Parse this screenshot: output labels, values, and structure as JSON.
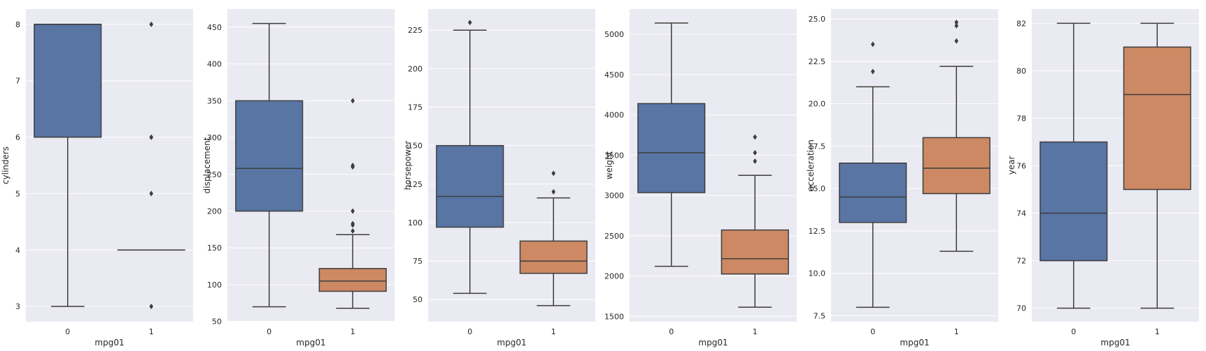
{
  "chart_data": [
    {
      "type": "boxplot",
      "xlabel": "mpg01",
      "ylabel": "cylinders",
      "categories": [
        "0",
        "1"
      ],
      "ylim": [
        2.73,
        8.27
      ],
      "yticks": [
        3,
        4,
        5,
        6,
        7,
        8
      ],
      "boxes": [
        {
          "category": "0",
          "whislo": 3,
          "q1": 6,
          "median": 8,
          "q3": 8,
          "whishi": 8,
          "fliers": []
        },
        {
          "category": "1",
          "whislo": 4,
          "q1": 4,
          "median": 4,
          "q3": 4,
          "whishi": 4,
          "fliers": [
            3,
            5,
            6,
            6,
            8
          ]
        }
      ]
    },
    {
      "type": "boxplot",
      "xlabel": "mpg01",
      "ylabel": "displacement",
      "categories": [
        "0",
        "1"
      ],
      "ylim": [
        49.7,
        474.6
      ],
      "yticks": [
        50,
        100,
        150,
        200,
        250,
        300,
        350,
        400,
        450
      ],
      "boxes": [
        {
          "category": "0",
          "whislo": 70,
          "q1": 200,
          "median": 258,
          "q3": 350,
          "whishi": 455,
          "fliers": []
        },
        {
          "category": "1",
          "whislo": 68,
          "q1": 91,
          "median": 105,
          "q3": 122,
          "whishi": 168,
          "fliers": [
            173,
            181,
            183,
            200,
            260,
            262,
            350
          ]
        }
      ]
    },
    {
      "type": "boxplot",
      "xlabel": "mpg01",
      "ylabel": "horsepower",
      "categories": [
        "0",
        "1"
      ],
      "ylim": [
        35.6,
        238.7
      ],
      "yticks": [
        50,
        75,
        100,
        125,
        150,
        175,
        200,
        225
      ],
      "boxes": [
        {
          "category": "0",
          "whislo": 54,
          "q1": 97,
          "median": 117,
          "q3": 150,
          "whishi": 225,
          "fliers": [
            230
          ]
        },
        {
          "category": "1",
          "whislo": 46,
          "q1": 67,
          "median": 75,
          "q3": 88,
          "whishi": 116,
          "fliers": [
            120,
            132
          ]
        }
      ]
    },
    {
      "type": "boxplot",
      "xlabel": "mpg01",
      "ylabel": "weight",
      "categories": [
        "0",
        "1"
      ],
      "ylim": [
        1433,
        5313
      ],
      "yticks": [
        1500,
        2000,
        2500,
        3000,
        3500,
        4000,
        4500,
        5000
      ],
      "boxes": [
        {
          "category": "0",
          "whislo": 2120,
          "q1": 3035,
          "median": 3530,
          "q3": 4140,
          "whishi": 5140,
          "fliers": []
        },
        {
          "category": "1",
          "whislo": 1613,
          "q1": 2025,
          "median": 2215,
          "q3": 2571,
          "whishi": 3250,
          "fliers": [
            3425,
            3530,
            3725
          ]
        }
      ]
    },
    {
      "type": "boxplot",
      "xlabel": "mpg01",
      "ylabel": "acceleration",
      "categories": [
        "0",
        "1"
      ],
      "ylim": [
        7.15,
        25.58
      ],
      "yticks": [
        7.5,
        10.0,
        12.5,
        15.0,
        17.5,
        20.0,
        22.5,
        25.0
      ],
      "boxes": [
        {
          "category": "0",
          "whislo": 8.0,
          "q1": 13.0,
          "median": 14.5,
          "q3": 16.5,
          "whishi": 21.0,
          "fliers": [
            21.9,
            23.5
          ]
        },
        {
          "category": "1",
          "whislo": 11.3,
          "q1": 14.7,
          "median": 16.2,
          "q3": 18.0,
          "whishi": 22.2,
          "fliers": [
            23.7,
            24.6,
            24.8
          ]
        }
      ]
    },
    {
      "type": "boxplot",
      "xlabel": "mpg01",
      "ylabel": "year",
      "categories": [
        "0",
        "1"
      ],
      "ylim": [
        69.43,
        82.6
      ],
      "yticks": [
        70,
        72,
        74,
        76,
        78,
        80,
        82
      ],
      "boxes": [
        {
          "category": "0",
          "whislo": 70,
          "q1": 72,
          "median": 74,
          "q3": 77,
          "whishi": 82,
          "fliers": []
        },
        {
          "category": "1",
          "whislo": 70,
          "q1": 75,
          "median": 79,
          "q3": 81,
          "whishi": 82,
          "fliers": []
        }
      ]
    }
  ],
  "colors": {
    "background": "#eaeaf2",
    "grid": "#ffffff",
    "box_0": "#5875a4",
    "box_1": "#cc8963",
    "lines": "#3d3d3d",
    "text": "#262626"
  }
}
